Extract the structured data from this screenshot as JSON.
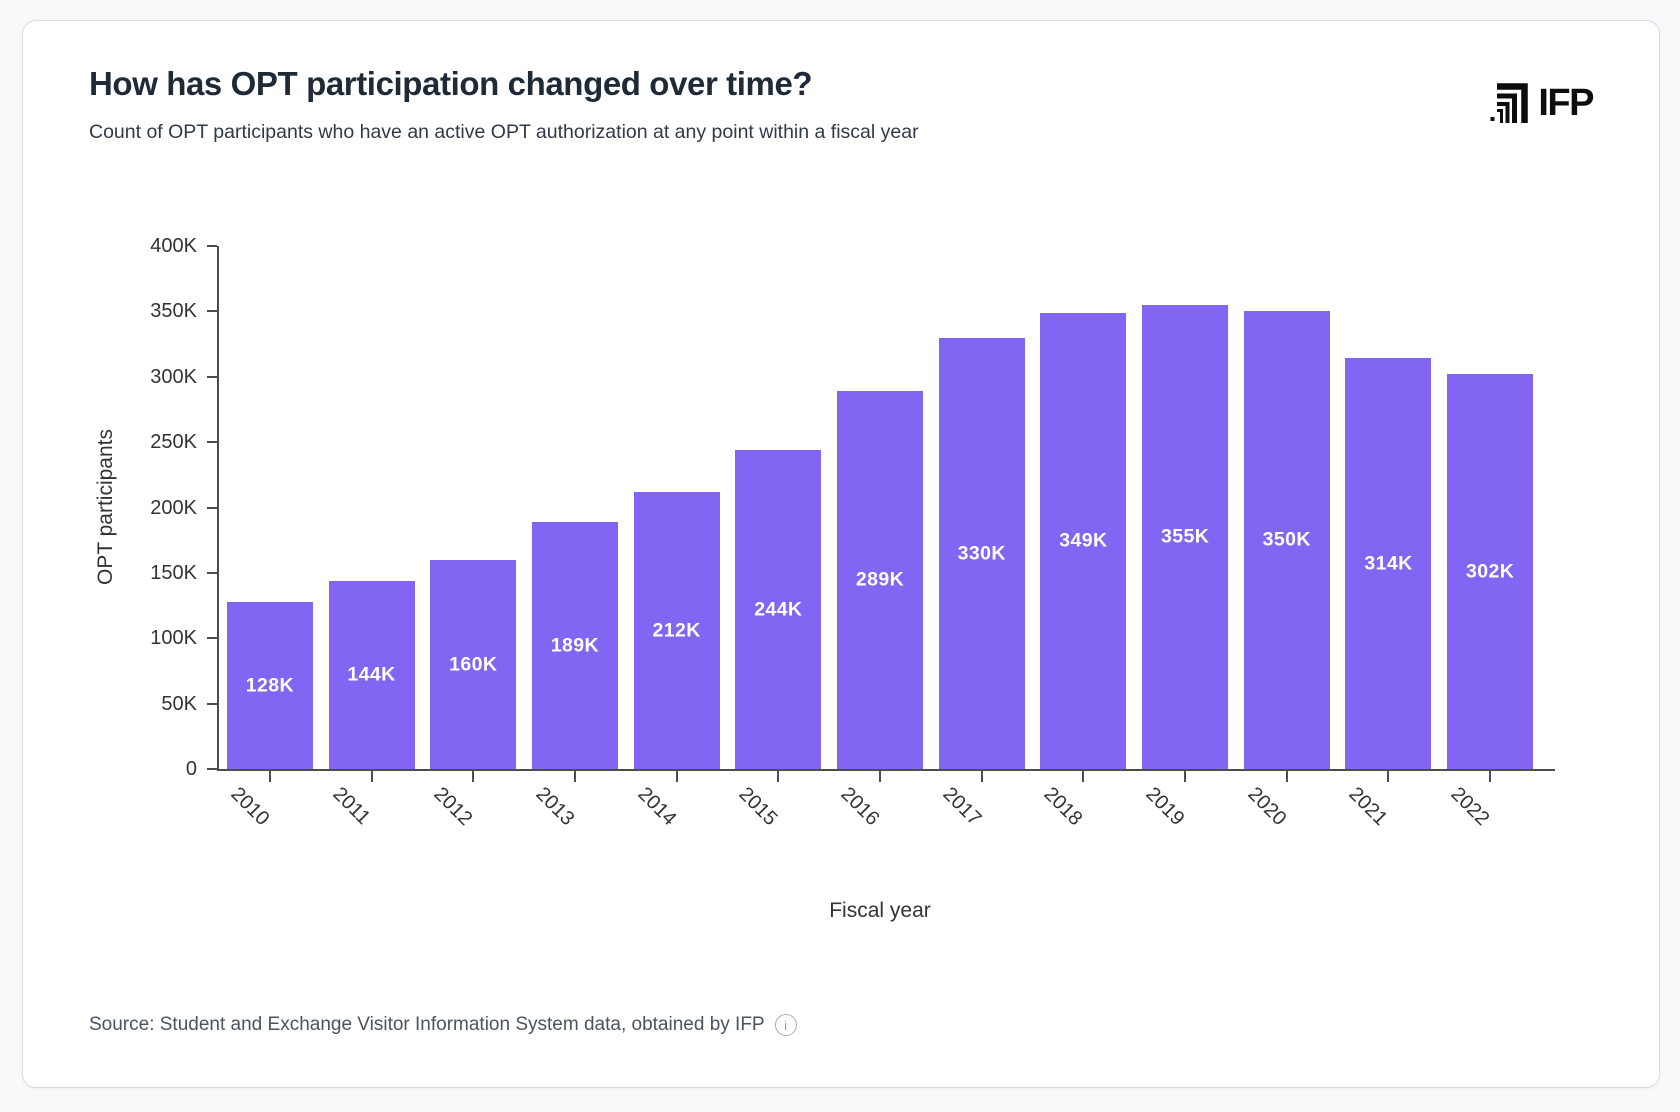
{
  "header": {
    "title": "How has OPT participation changed over time?",
    "subtitle": "Count of OPT participants who have an active OPT authorization at any point within a fiscal year"
  },
  "logo": {
    "text": "IFP",
    "mark_icon": "ifp-nested-corners-icon"
  },
  "chart_data": {
    "type": "bar",
    "title": "How has OPT participation changed over time?",
    "categories": [
      "2010",
      "2011",
      "2012",
      "2013",
      "2014",
      "2015",
      "2016",
      "2017",
      "2018",
      "2019",
      "2020",
      "2021",
      "2022"
    ],
    "values": [
      128000,
      144000,
      160000,
      189000,
      212000,
      244000,
      289000,
      330000,
      349000,
      355000,
      350000,
      314000,
      302000
    ],
    "bar_labels": [
      "128K",
      "144K",
      "160K",
      "189K",
      "212K",
      "244K",
      "289K",
      "330K",
      "349K",
      "355K",
      "350K",
      "314K",
      "302K"
    ],
    "xlabel": "Fiscal year",
    "ylabel": "OPT participants",
    "ylim": [
      0,
      400000
    ],
    "ytick_labels": [
      "0",
      "50K",
      "100K",
      "150K",
      "200K",
      "250K",
      "300K",
      "350K",
      "400K"
    ],
    "grid": false,
    "legend": "none",
    "bar_color": "#8265F3",
    "bar_label_color": "#FFFFFF",
    "axis_color": "#4D4D4D"
  },
  "footer": {
    "source": "Source: Student and Exchange Visitor Information System data, obtained by IFP",
    "info_icon": "info-icon",
    "info_icon_glyph": "i"
  }
}
